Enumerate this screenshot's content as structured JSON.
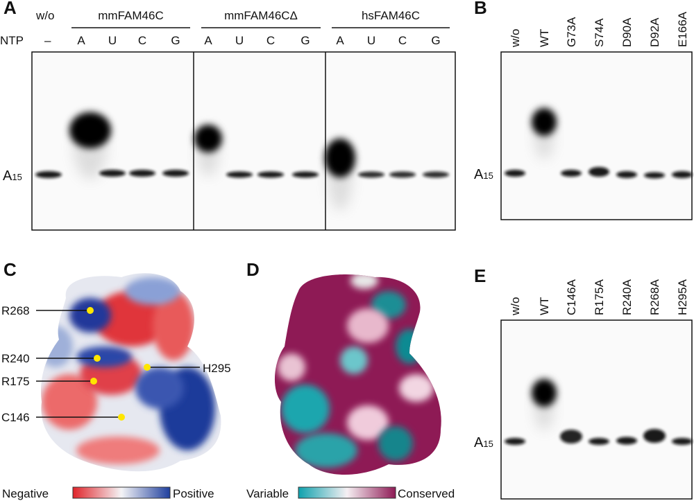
{
  "panels": {
    "a": {
      "label": "A",
      "control_header": "w/o",
      "row_label": "NTP",
      "control_lane": "–",
      "groups": [
        {
          "name": "mmFAM46C",
          "lanes": [
            "A",
            "U",
            "C",
            "G"
          ]
        },
        {
          "name": "mmFAM46CΔ",
          "lanes": [
            "A",
            "U",
            "C",
            "G"
          ]
        },
        {
          "name": "hsFAM46C",
          "lanes": [
            "A",
            "U",
            "C",
            "G"
          ]
        }
      ],
      "marker": {
        "base": "A",
        "sub": "15"
      }
    },
    "b": {
      "label": "B",
      "lanes": [
        "w/o",
        "WT",
        "G73A",
        "S74A",
        "D90A",
        "D92A",
        "E166A"
      ],
      "marker": {
        "base": "A",
        "sub": "15"
      }
    },
    "c": {
      "label": "C",
      "residues": [
        "R268",
        "R240",
        "R175",
        "C146",
        "H295"
      ],
      "scale": {
        "low": "Negative",
        "high": "Positive"
      }
    },
    "d": {
      "label": "D",
      "scale": {
        "low": "Variable",
        "high": "Conserved"
      }
    },
    "e": {
      "label": "E",
      "lanes": [
        "w/o",
        "WT",
        "C146A",
        "R175A",
        "R240A",
        "R268A",
        "H295A"
      ],
      "marker": {
        "base": "A",
        "sub": "15"
      }
    }
  }
}
